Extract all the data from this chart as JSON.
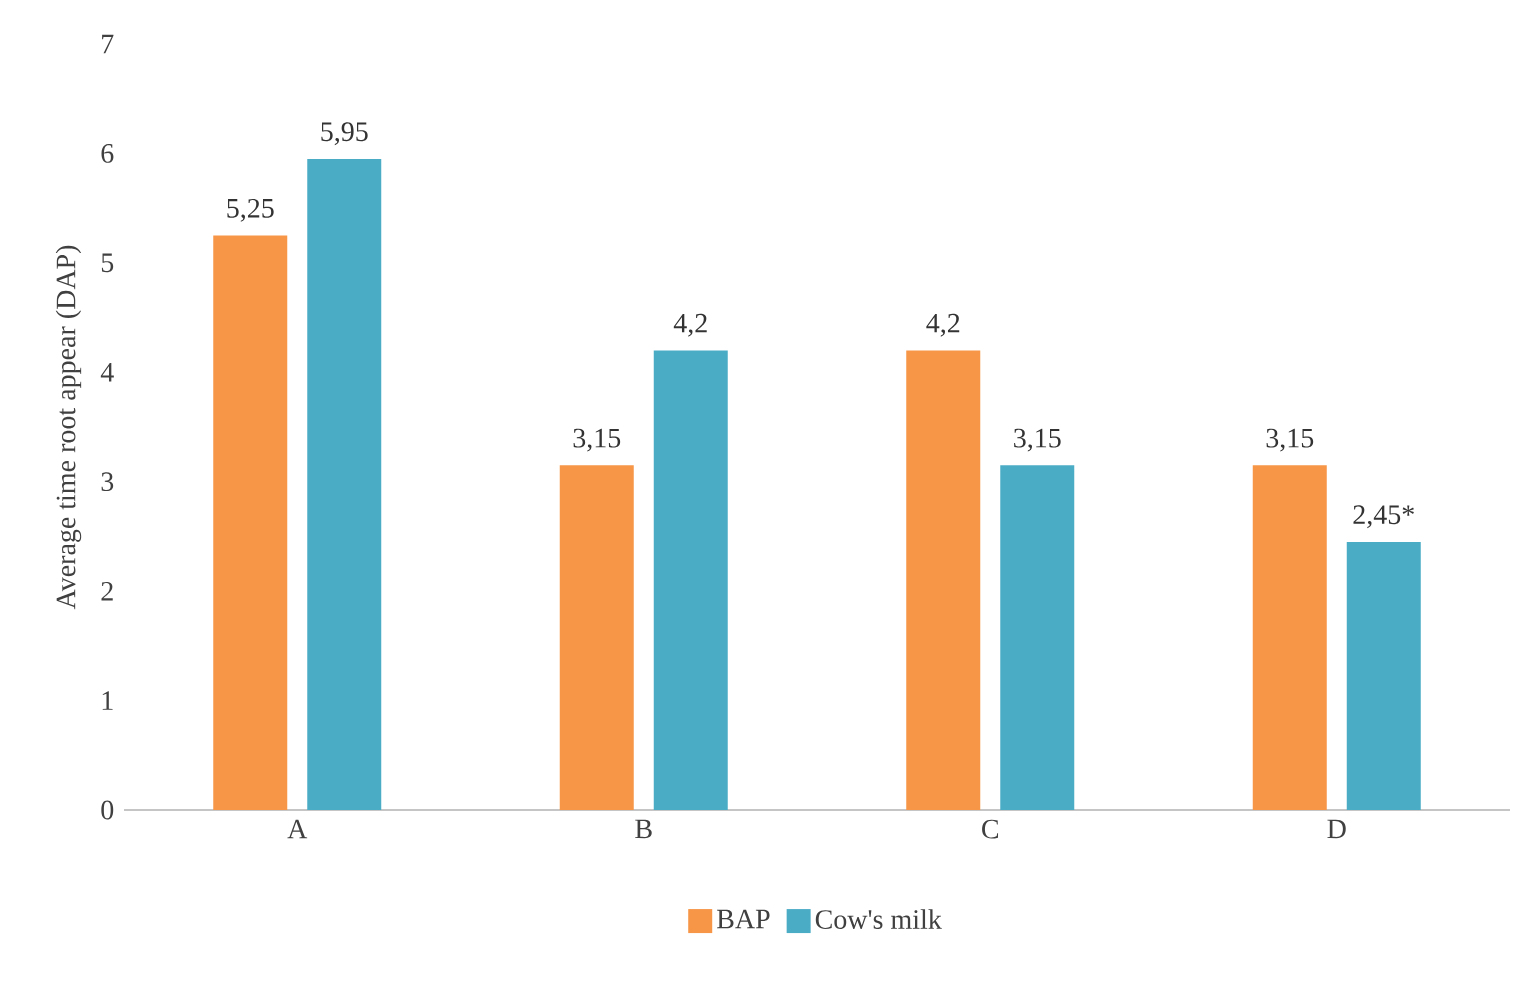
{
  "chart_data": {
    "type": "bar",
    "ylabel": "Average time root appear (DAP)",
    "categories": [
      "A",
      "B",
      "C",
      "D"
    ],
    "series": [
      {
        "name": "BAP",
        "color": "#f79646",
        "values": [
          5.25,
          3.15,
          4.2,
          3.15
        ],
        "value_labels": [
          "5,25",
          "3,15",
          "4,2",
          "3,15"
        ]
      },
      {
        "name": "Cow's milk",
        "color": "#4bacc6",
        "values": [
          5.95,
          4.2,
          3.15,
          2.45
        ],
        "value_labels": [
          "5,95",
          "4,2",
          "3,15",
          "2,45*"
        ]
      }
    ],
    "ylim": [
      0,
      7
    ],
    "yticks": [
      0,
      1,
      2,
      3,
      4,
      5,
      6,
      7
    ],
    "legend": "bottom"
  }
}
